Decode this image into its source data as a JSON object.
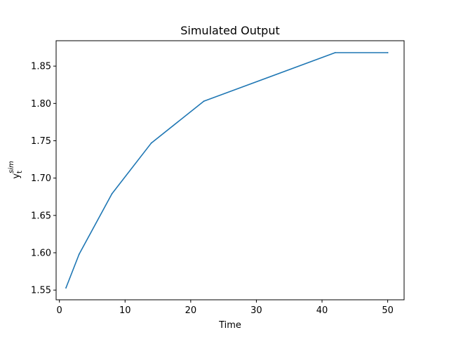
{
  "chart_data": {
    "type": "line",
    "title": "Simulated Output",
    "xlabel": "Time",
    "ylabel": {
      "base": "y",
      "sub": "t",
      "sup": "sim"
    },
    "xlim": [
      -0.5,
      52.5
    ],
    "ylim": [
      1.537,
      1.884
    ],
    "xticks": [
      0,
      10,
      20,
      30,
      40,
      50
    ],
    "yticks": [
      1.55,
      1.6,
      1.65,
      1.7,
      1.75,
      1.8,
      1.85
    ],
    "ytick_labels": [
      "1.55",
      "1.60",
      "1.65",
      "1.70",
      "1.75",
      "1.80",
      "1.85"
    ],
    "grid": false,
    "series": [
      {
        "color": "#1f77b4",
        "x": [
          1,
          3,
          8,
          14,
          22,
          42,
          50
        ],
        "y": [
          1.553,
          1.598,
          1.679,
          1.747,
          1.803,
          1.868,
          1.868
        ]
      }
    ]
  }
}
